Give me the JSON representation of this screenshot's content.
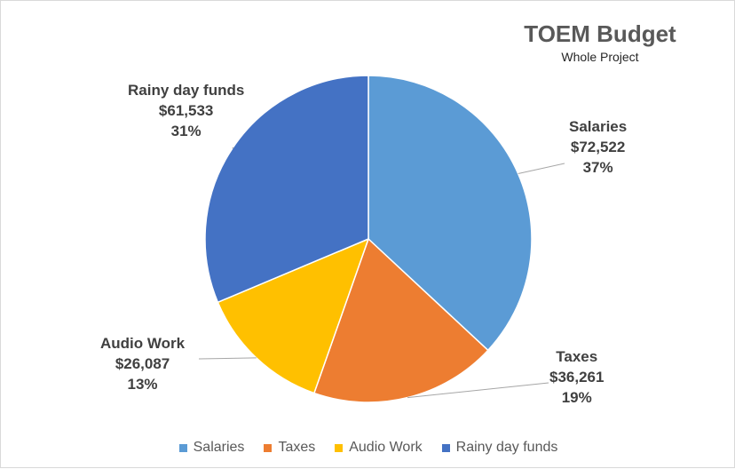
{
  "chart_data": {
    "type": "pie",
    "title": "TOEM Budget",
    "subtitle": "Whole Project",
    "legend_position": "bottom",
    "slices": [
      {
        "name": "Salaries",
        "value": 72522,
        "value_label": "$72,522",
        "percent_label": "37%",
        "color": "#5B9BD5"
      },
      {
        "name": "Taxes",
        "value": 36261,
        "value_label": "$36,261",
        "percent_label": "19%",
        "color": "#ED7D31"
      },
      {
        "name": "Audio Work",
        "value": 26087,
        "value_label": "$26,087",
        "percent_label": "13%",
        "color": "#FFC000"
      },
      {
        "name": "Rainy day funds",
        "value": 61533,
        "value_label": "$61,533",
        "percent_label": "31%",
        "color": "#4472C4"
      }
    ]
  }
}
